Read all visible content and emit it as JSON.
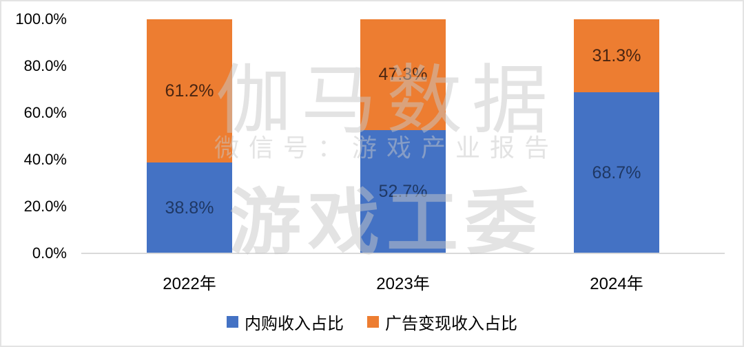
{
  "chart_data": {
    "type": "bar",
    "variant": "stacked-100-percent-column",
    "title": "",
    "categories": [
      "2022年",
      "2023年",
      "2024年"
    ],
    "series": [
      {
        "name": "内购收入占比",
        "color": "#4472C4",
        "label_color": "#1F3864",
        "values": [
          38.8,
          52.7,
          68.7
        ],
        "labels": [
          "38.8%",
          "52.7%",
          "68.7%"
        ]
      },
      {
        "name": "广告变现收入占比",
        "color": "#ED7D31",
        "label_color": "#4A2511",
        "values": [
          61.2,
          47.3,
          31.3
        ],
        "labels": [
          "61.2%",
          "47.3%",
          "31.3%"
        ]
      }
    ],
    "y_axis": {
      "min": 0,
      "max": 100,
      "ticks": [
        {
          "value": 100,
          "label": "100.0%"
        },
        {
          "value": 80,
          "label": "80.0%"
        },
        {
          "value": 60,
          "label": "60.0%"
        },
        {
          "value": 40,
          "label": "40.0%"
        },
        {
          "value": 20,
          "label": "20.0%"
        },
        {
          "value": 0,
          "label": "0.0%"
        }
      ]
    },
    "grid": false,
    "legend_position": "bottom",
    "axis_line_color": "#D9D9D9"
  },
  "watermark": {
    "line1": "伽马数据",
    "line2": "微信号：游戏产业报告",
    "line3": "游戏工委",
    "color": "#E8E8E8"
  }
}
